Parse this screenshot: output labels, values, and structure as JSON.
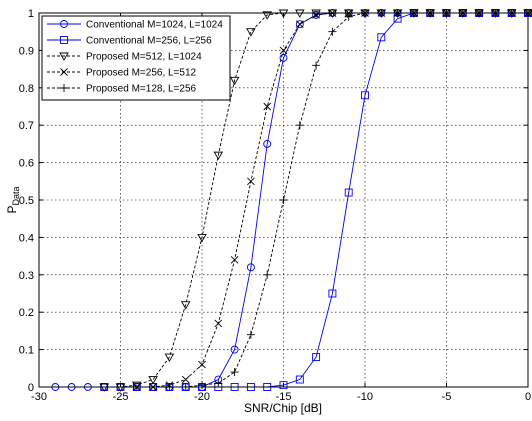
{
  "chart_data": {
    "type": "line",
    "xlabel": "SNR/Chip [dB]",
    "ylabel": "P",
    "ylabel_sub": "Data",
    "xlim": [
      -30,
      0
    ],
    "ylim": [
      0,
      1
    ],
    "xticks": [
      -30,
      -25,
      -20,
      -15,
      -10,
      -5,
      0
    ],
    "yticks": [
      0,
      0.1,
      0.2,
      0.3,
      0.4,
      0.5,
      0.6,
      0.7,
      0.8,
      0.9,
      1
    ],
    "grid": true,
    "legend_position": "top-left",
    "x_tick_labels": [
      "-30",
      "-25",
      "-20",
      "-15",
      "-10",
      "-5",
      "0"
    ],
    "y_tick_labels": [
      "0",
      "0.1",
      "0.2",
      "0.3",
      "0.4",
      "0.5",
      "0.6",
      "0.7",
      "0.8",
      "0.9",
      "1"
    ],
    "series": [
      {
        "name": "Conventional M=1024, L=1024",
        "color": "#0000ff",
        "line": "solid",
        "marker": "circle",
        "x": [
          -29,
          -28,
          -27,
          -26,
          -25,
          -24,
          -23,
          -22,
          -21,
          -20,
          -19,
          -18,
          -17,
          -16,
          -15,
          -14,
          -13,
          -12,
          -11,
          -10,
          -9,
          -8,
          -7,
          -6,
          -5,
          -4,
          -3,
          -2,
          -1,
          0
        ],
        "y": [
          0,
          0,
          0,
          0,
          0,
          0,
          0,
          0,
          0,
          0,
          0.02,
          0.1,
          0.32,
          0.65,
          0.88,
          0.97,
          0.995,
          1,
          1,
          1,
          1,
          1,
          1,
          1,
          1,
          1,
          1,
          1,
          1,
          1
        ]
      },
      {
        "name": "Conventional M=256, L=256",
        "color": "#0000ff",
        "line": "solid",
        "marker": "square",
        "x": [
          -26,
          -25,
          -24,
          -23,
          -22,
          -21,
          -20,
          -19,
          -18,
          -17,
          -16,
          -15,
          -14,
          -13,
          -12,
          -11,
          -10,
          -9,
          -8,
          -7,
          -6,
          -5,
          -4,
          -3,
          -2,
          -1,
          0
        ],
        "y": [
          0,
          0,
          0,
          0,
          0,
          0,
          0,
          0,
          0,
          0,
          0,
          0.005,
          0.02,
          0.08,
          0.25,
          0.52,
          0.78,
          0.935,
          0.985,
          1,
          1,
          1,
          1,
          1,
          1,
          1,
          1
        ]
      },
      {
        "name": "Proposed M=512, L=1024",
        "color": "#000000",
        "line": "dashed",
        "marker": "triangle-down",
        "x": [
          -26,
          -25,
          -24,
          -23,
          -22,
          -21,
          -20,
          -19,
          -18,
          -17,
          -16,
          -15,
          -14,
          -13,
          -12,
          -11,
          -10,
          -9,
          -8,
          -7,
          -6,
          -5,
          -4,
          -3,
          -2,
          -1,
          0
        ],
        "y": [
          0,
          0,
          0.005,
          0.02,
          0.08,
          0.22,
          0.4,
          0.62,
          0.82,
          0.95,
          0.995,
          1,
          1,
          1,
          1,
          1,
          1,
          1,
          1,
          1,
          1,
          1,
          1,
          1,
          1,
          1,
          1
        ]
      },
      {
        "name": "Proposed M=256, L=512",
        "color": "#000000",
        "line": "dashed",
        "marker": "x",
        "x": [
          -24,
          -23,
          -22,
          -21,
          -20,
          -19,
          -18,
          -17,
          -16,
          -15,
          -14,
          -13,
          -12,
          -11,
          -10,
          -9,
          -8,
          -7,
          -6,
          -5,
          -4,
          -3,
          -2,
          -1,
          0
        ],
        "y": [
          0,
          0,
          0.005,
          0.02,
          0.06,
          0.17,
          0.34,
          0.55,
          0.75,
          0.9,
          0.97,
          0.995,
          1,
          1,
          1,
          1,
          1,
          1,
          1,
          1,
          1,
          1,
          1,
          1,
          1
        ]
      },
      {
        "name": "Proposed M=128, L=256",
        "color": "#000000",
        "line": "dashed",
        "marker": "plus",
        "x": [
          -22,
          -21,
          -20,
          -19,
          -18,
          -17,
          -16,
          -15,
          -14,
          -13,
          -12,
          -11,
          -10,
          -9,
          -8,
          -7,
          -6,
          -5,
          -4,
          -3,
          -2,
          -1,
          0
        ],
        "y": [
          0,
          0,
          0.005,
          0.01,
          0.04,
          0.14,
          0.3,
          0.5,
          0.7,
          0.86,
          0.95,
          0.99,
          1,
          1,
          1,
          1,
          1,
          1,
          1,
          1,
          1,
          1,
          1
        ]
      }
    ]
  }
}
